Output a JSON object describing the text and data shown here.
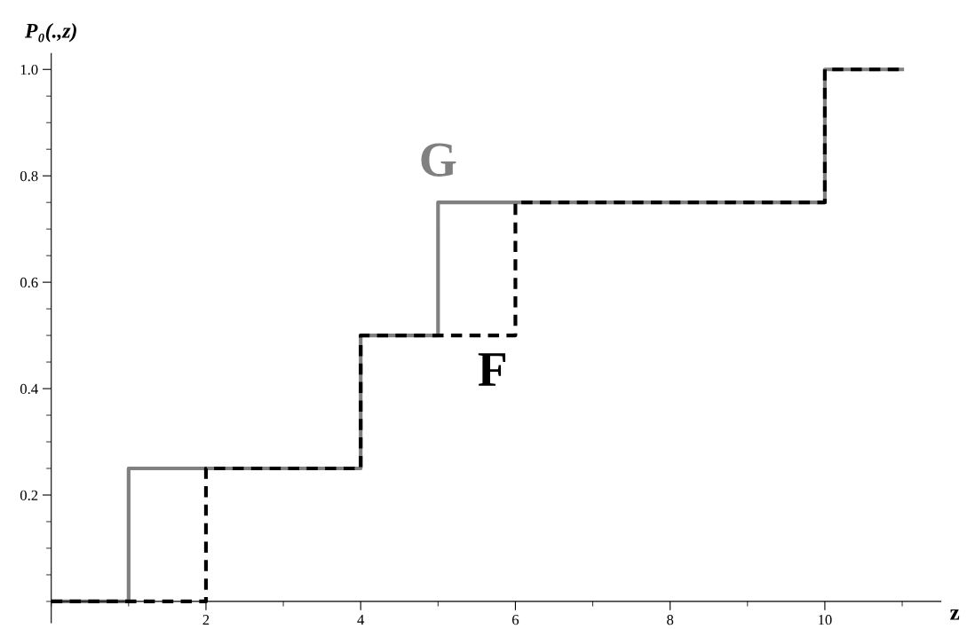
{
  "chart_data": {
    "type": "step",
    "ylabel": "P₀(.,z)",
    "xlabel": "z",
    "series": [
      {
        "name": "G",
        "color": "#808080",
        "line_style": "solid",
        "x": [
          0,
          1,
          4,
          5,
          10,
          11
        ],
        "values": [
          0,
          0.25,
          0.5,
          0.75,
          1,
          1
        ]
      },
      {
        "name": "F",
        "color": "#000000",
        "line_style": "dashed",
        "x": [
          0,
          2,
          4,
          6,
          10,
          11
        ],
        "values": [
          0,
          0.25,
          0.5,
          0.75,
          1,
          1
        ]
      }
    ],
    "xlim": [
      0,
      11.5
    ],
    "ylim": [
      -0.04,
      1.03
    ],
    "xticks": [
      2,
      4,
      6,
      8,
      10
    ],
    "yticks": [
      {
        "value": 0.2,
        "label": "0.2"
      },
      {
        "value": 0.4,
        "label": "0.4"
      },
      {
        "value": 0.6,
        "label": "0.6"
      },
      {
        "value": 0.8,
        "label": "0.8"
      },
      {
        "value": 1,
        "label": "1.0"
      }
    ],
    "grid": false,
    "legend": false,
    "marker": "none"
  }
}
